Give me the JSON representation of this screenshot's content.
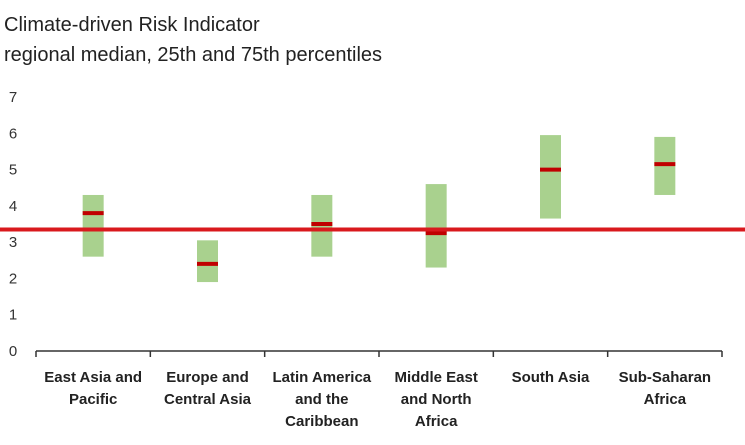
{
  "title": "Climate-driven Risk Indicator",
  "subtitle": "regional median, 25th and 75th percentiles",
  "colors": {
    "box": "#a9d18e",
    "median": "#c00000",
    "reference": "#d9191d",
    "axis": "#333333"
  },
  "chart_data": {
    "type": "box",
    "title": "Climate-driven Risk Indicator",
    "subtitle": "regional median, 25th and 75th percentiles",
    "ylim": [
      0,
      7
    ],
    "yticks": [
      0,
      1,
      2,
      3,
      4,
      5,
      6,
      7
    ],
    "reference_line": 3.35,
    "categories": [
      {
        "label": [
          "East Asia and",
          "Pacific"
        ],
        "p25": 2.6,
        "median": 3.8,
        "p75": 4.3
      },
      {
        "label": [
          "Europe and",
          "Central Asia"
        ],
        "p25": 1.9,
        "median": 2.4,
        "p75": 3.05
      },
      {
        "label": [
          "Latin America",
          "and the",
          "Caribbean"
        ],
        "p25": 2.6,
        "median": 3.5,
        "p75": 4.3
      },
      {
        "label": [
          "Middle East",
          "and North",
          "Africa"
        ],
        "p25": 2.3,
        "median": 3.25,
        "p75": 4.6
      },
      {
        "label": [
          "South Asia"
        ],
        "p25": 3.65,
        "median": 5.0,
        "p75": 5.95
      },
      {
        "label": [
          "Sub-Saharan",
          "Africa"
        ],
        "p25": 4.3,
        "median": 5.15,
        "p75": 5.9
      }
    ]
  }
}
